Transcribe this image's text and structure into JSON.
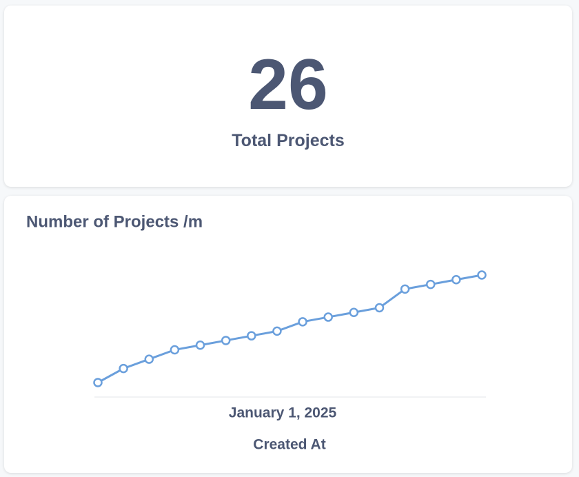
{
  "scalar": {
    "value": 26,
    "label": "Total Projects"
  },
  "chart_data": {
    "type": "line",
    "title": "Number of Projects /m",
    "categories": [
      null,
      null,
      null,
      null,
      null,
      null,
      null,
      null,
      null,
      null,
      null,
      null,
      null,
      null,
      null,
      null
    ],
    "values": [
      1,
      4,
      6,
      8,
      9,
      10,
      11,
      12,
      14,
      15,
      16,
      17,
      21,
      22,
      23,
      24
    ],
    "x_tick_label": "January 1, 2025",
    "x_label": "Created At",
    "color": "#6a9fdc"
  }
}
